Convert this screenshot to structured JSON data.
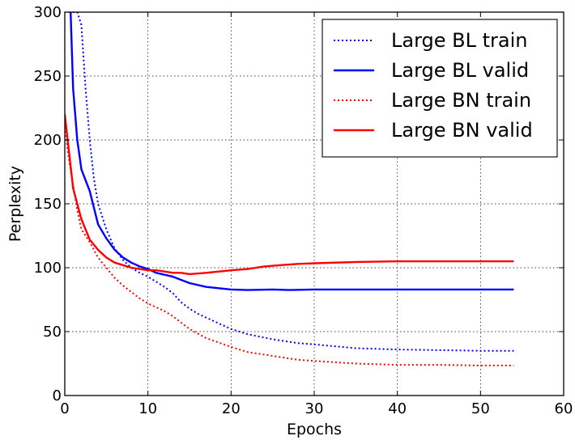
{
  "chart_data": {
    "type": "line",
    "title": "",
    "xlabel": "Epochs",
    "ylabel": "Perplexity",
    "xlim": [
      0,
      60
    ],
    "ylim": [
      0,
      300
    ],
    "xticks": [
      0,
      10,
      20,
      30,
      40,
      50,
      60
    ],
    "yticks": [
      0,
      50,
      100,
      150,
      200,
      250,
      300
    ],
    "grid": true,
    "legend_position": "top-right",
    "series": [
      {
        "name": "Large BL train",
        "color": "#0000ff",
        "style": "dotted",
        "x": [
          0.5,
          1,
          1.5,
          2,
          2.5,
          3,
          3.5,
          4,
          5,
          6,
          7,
          8,
          9,
          10,
          12,
          13,
          14,
          15,
          16,
          17,
          18,
          20,
          22,
          25,
          28,
          30,
          35,
          40,
          45,
          50,
          54
        ],
        "y": [
          300,
          300,
          300,
          290,
          240,
          200,
          170,
          150,
          130,
          115,
          106,
          100,
          96,
          93,
          85,
          80,
          73,
          68,
          64,
          61,
          58,
          52,
          48,
          44,
          41,
          40,
          37,
          36,
          35.5,
          35,
          35
        ]
      },
      {
        "name": "Large BL valid",
        "color": "#0000ff",
        "style": "solid",
        "x": [
          0.7,
          1,
          1.5,
          2,
          3,
          4,
          5,
          6,
          7,
          8,
          9,
          10,
          11,
          13,
          15,
          17,
          20,
          22,
          25,
          27,
          30,
          35,
          40,
          45,
          50,
          54
        ],
        "y": [
          300,
          240,
          200,
          177,
          160,
          134,
          123,
          114,
          108,
          104,
          101,
          99,
          96,
          93,
          88,
          85,
          83,
          82.5,
          83,
          82.5,
          83,
          83,
          83,
          83,
          83,
          83
        ]
      },
      {
        "name": "Large BN train",
        "color": "#ff0000",
        "style": "dotted",
        "x": [
          0,
          0.5,
          1,
          1.5,
          2,
          3,
          4,
          5,
          6,
          7,
          8,
          9,
          10,
          12,
          13,
          15,
          17,
          20,
          22,
          25,
          28,
          30,
          35,
          40,
          45,
          50,
          54
        ],
        "y": [
          210,
          185,
          165,
          145,
          130,
          120,
          108,
          100,
          92,
          86,
          81,
          76,
          72,
          66,
          62,
          52,
          45,
          38,
          34,
          31,
          28,
          27,
          25,
          24,
          24,
          23.5,
          23.5
        ]
      },
      {
        "name": "Large BN valid",
        "color": "#ff0000",
        "style": "solid",
        "x": [
          0,
          1,
          2,
          3,
          4,
          5,
          6,
          7,
          8,
          9,
          10,
          11,
          12,
          13,
          14,
          15,
          17,
          20,
          22,
          24,
          26,
          28,
          30,
          35,
          40,
          45,
          50,
          54
        ],
        "y": [
          220,
          162,
          138,
          122,
          114,
          108,
          104,
          102,
          100,
          99,
          98,
          98,
          97,
          96,
          96,
          95,
          96,
          98,
          99,
          101,
          102,
          103,
          103.5,
          104.5,
          105,
          105,
          105,
          105
        ]
      }
    ]
  }
}
